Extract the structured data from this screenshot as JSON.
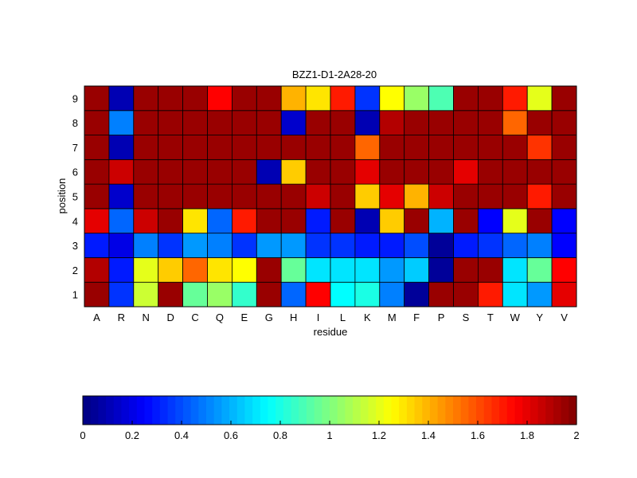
{
  "chart_data": {
    "type": "heatmap",
    "title": "BZZ1-D1-2A28-20",
    "xlabel": "residue",
    "ylabel": "position",
    "x_categories": [
      "A",
      "R",
      "N",
      "D",
      "C",
      "Q",
      "E",
      "G",
      "H",
      "I",
      "L",
      "K",
      "M",
      "F",
      "P",
      "S",
      "T",
      "W",
      "Y",
      "V"
    ],
    "y_categories": [
      "1",
      "2",
      "3",
      "4",
      "5",
      "6",
      "7",
      "8",
      "9"
    ],
    "values": [
      [
        1.95,
        0.35,
        1.15,
        1.95,
        0.95,
        1.05,
        0.85,
        1.95,
        0.45,
        1.75,
        0.75,
        0.8,
        0.5,
        0.05,
        1.95,
        1.95,
        1.7,
        0.7,
        0.55,
        1.8
      ],
      [
        1.9,
        0.3,
        1.2,
        1.35,
        1.55,
        1.3,
        1.25,
        1.95,
        0.95,
        0.7,
        0.7,
        0.7,
        0.55,
        0.65,
        0.05,
        1.95,
        1.95,
        0.7,
        0.95,
        1.75
      ],
      [
        0.3,
        0.2,
        0.5,
        0.35,
        0.55,
        0.5,
        0.35,
        0.55,
        0.55,
        0.35,
        0.35,
        0.3,
        0.3,
        0.4,
        0.05,
        0.3,
        0.35,
        0.45,
        0.5,
        0.25
      ],
      [
        1.8,
        0.45,
        1.85,
        1.95,
        1.3,
        0.45,
        1.7,
        1.95,
        1.95,
        0.3,
        1.95,
        0.1,
        1.35,
        1.95,
        0.6,
        1.95,
        0.25,
        1.2,
        1.95,
        0.25
      ],
      [
        1.95,
        0.15,
        1.95,
        1.95,
        1.95,
        1.95,
        1.95,
        1.95,
        1.95,
        1.85,
        1.95,
        1.35,
        1.8,
        1.4,
        1.85,
        1.95,
        1.95,
        1.95,
        1.7,
        1.95
      ],
      [
        1.95,
        1.85,
        1.95,
        1.95,
        1.95,
        1.95,
        1.95,
        0.1,
        1.35,
        1.95,
        1.95,
        1.8,
        1.95,
        1.95,
        1.95,
        1.8,
        1.95,
        1.95,
        1.95,
        1.95
      ],
      [
        1.95,
        0.1,
        1.95,
        1.95,
        1.95,
        1.95,
        1.95,
        1.95,
        1.95,
        1.95,
        1.95,
        1.55,
        1.95,
        1.95,
        1.95,
        1.95,
        1.95,
        1.95,
        1.65,
        1.95
      ],
      [
        1.95,
        0.5,
        1.95,
        1.95,
        1.95,
        1.95,
        1.95,
        1.95,
        0.15,
        1.95,
        1.95,
        0.1,
        1.9,
        1.95,
        1.95,
        1.95,
        1.95,
        1.55,
        1.95,
        1.95
      ],
      [
        1.95,
        0.1,
        1.95,
        1.95,
        1.95,
        1.75,
        1.95,
        1.95,
        1.4,
        1.3,
        1.7,
        0.35,
        1.25,
        1.05,
        0.9,
        1.95,
        1.95,
        1.7,
        1.2,
        1.95
      ]
    ],
    "colorbar": {
      "colormap": "jet",
      "range": [
        0,
        2
      ],
      "ticks": [
        0,
        0.2,
        0.4,
        0.6,
        0.8,
        1,
        1.2,
        1.4,
        1.6,
        1.8,
        2
      ],
      "tick_labels": [
        "0",
        "0.2",
        "0.4",
        "0.6",
        "0.8",
        "1",
        "1.2",
        "1.4",
        "1.6",
        "1.8",
        "2"
      ],
      "orientation": "horizontal",
      "placement": "bottom"
    },
    "grid": false
  }
}
